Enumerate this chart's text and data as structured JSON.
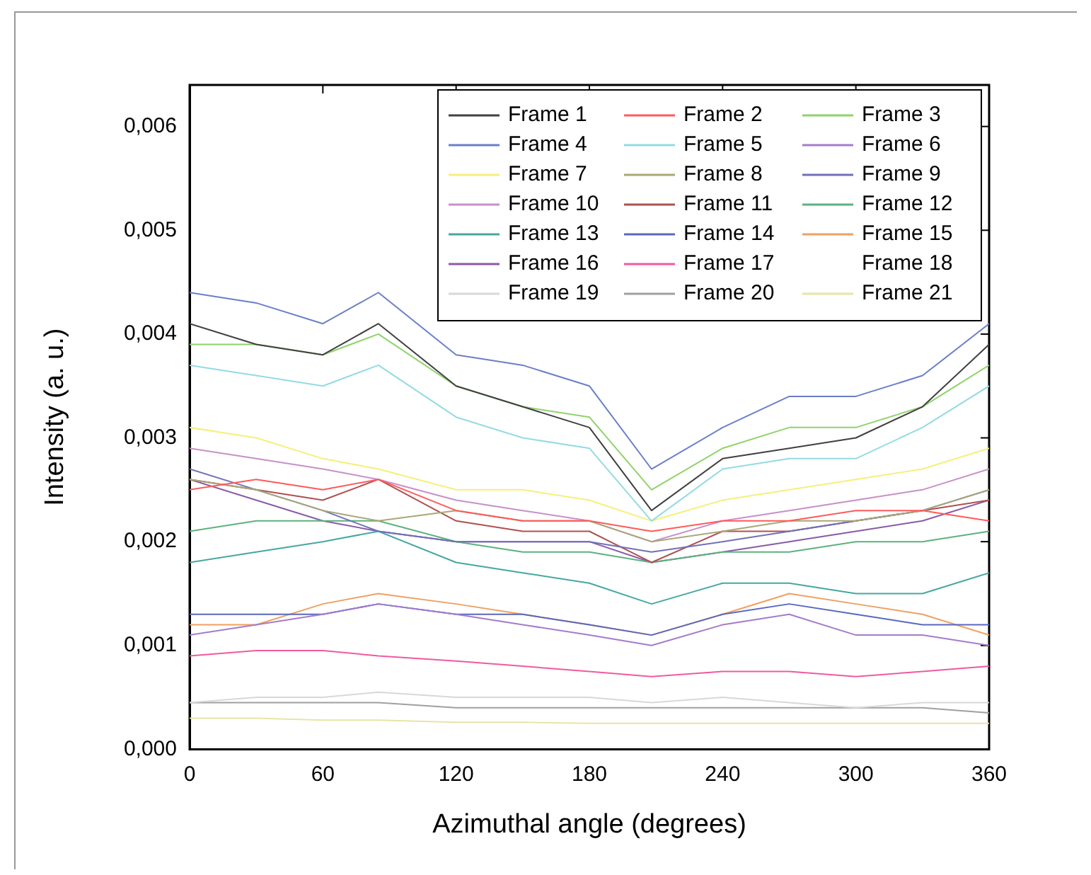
{
  "chart_data": {
    "type": "line",
    "xlabel": "Azimuthal angle (degrees)",
    "ylabel": "Intensity (a. u.)",
    "x": [
      0,
      30,
      60,
      85,
      120,
      150,
      180,
      208,
      240,
      270,
      300,
      330,
      360
    ],
    "xlim": [
      0,
      360
    ],
    "xticks": [
      0,
      60,
      120,
      180,
      240,
      300,
      360
    ],
    "ylim": [
      0,
      0.0064
    ],
    "yticks": [
      {
        "value": 0,
        "label": "0,000"
      },
      {
        "value": 0.001,
        "label": "0,001"
      },
      {
        "value": 0.002,
        "label": "0,002"
      },
      {
        "value": 0.003,
        "label": "0,003"
      },
      {
        "value": 0.004,
        "label": "0,004"
      },
      {
        "value": 0.005,
        "label": "0,005"
      },
      {
        "value": 0.006,
        "label": "0,006"
      }
    ],
    "grid": false,
    "legend": "top right",
    "marker": "none",
    "line_style": "solid",
    "series": [
      {
        "name": "Frame 1",
        "color": "#404040",
        "values": [
          0.0041,
          0.0039,
          0.0038,
          0.0041,
          0.0035,
          0.0033,
          0.0031,
          0.0023,
          0.0028,
          0.0029,
          0.003,
          0.0033,
          0.0039
        ]
      },
      {
        "name": "Frame 2",
        "color": "#ff5a5a",
        "values": [
          0.0025,
          0.0026,
          0.0025,
          0.0026,
          0.0023,
          0.0022,
          0.0022,
          0.0021,
          0.0022,
          0.0022,
          0.0023,
          0.0023,
          0.0022
        ]
      },
      {
        "name": "Frame 3",
        "color": "#8fd36a",
        "values": [
          0.0039,
          0.0039,
          0.0038,
          0.004,
          0.0035,
          0.0033,
          0.0032,
          0.0025,
          0.0029,
          0.0031,
          0.0031,
          0.0033,
          0.0037
        ]
      },
      {
        "name": "Frame 4",
        "color": "#6a7fc8",
        "values": [
          0.0044,
          0.0043,
          0.0041,
          0.0044,
          0.0038,
          0.0037,
          0.0035,
          0.0027,
          0.0031,
          0.0034,
          0.0034,
          0.0036,
          0.0041
        ]
      },
      {
        "name": "Frame 5",
        "color": "#94dbe3",
        "values": [
          0.0037,
          0.0036,
          0.0035,
          0.0037,
          0.0032,
          0.003,
          0.0029,
          0.0022,
          0.0027,
          0.0028,
          0.0028,
          0.0031,
          0.0035
        ]
      },
      {
        "name": "Frame 6",
        "color": "#a47ccc",
        "values": [
          0.0011,
          0.0012,
          0.0013,
          0.0014,
          0.0013,
          0.0012,
          0.0011,
          0.001,
          0.0012,
          0.0013,
          0.0011,
          0.0011,
          0.001
        ]
      },
      {
        "name": "Frame 7",
        "color": "#f5f07a",
        "values": [
          0.0031,
          0.003,
          0.0028,
          0.0027,
          0.0025,
          0.0025,
          0.0024,
          0.0022,
          0.0024,
          0.0025,
          0.0026,
          0.0027,
          0.0029
        ]
      },
      {
        "name": "Frame 8",
        "color": "#a8a878",
        "values": [
          0.0026,
          0.0025,
          0.0023,
          0.0022,
          0.0023,
          0.0022,
          0.0022,
          0.002,
          0.0021,
          0.0022,
          0.0022,
          0.0023,
          0.0025
        ]
      },
      {
        "name": "Frame 9",
        "color": "#7070b8",
        "values": [
          0.0027,
          0.0025,
          0.0023,
          0.0021,
          0.002,
          0.002,
          0.002,
          0.0019,
          0.002,
          0.0021,
          0.0022,
          0.0023,
          0.0025
        ]
      },
      {
        "name": "Frame 10",
        "color": "#c890c8",
        "values": [
          0.0029,
          0.0028,
          0.0027,
          0.0026,
          0.0024,
          0.0023,
          0.0022,
          0.002,
          0.0022,
          0.0023,
          0.0024,
          0.0025,
          0.0027
        ]
      },
      {
        "name": "Frame 11",
        "color": "#b05050",
        "values": [
          0.0026,
          0.0025,
          0.0024,
          0.0026,
          0.0022,
          0.0021,
          0.0021,
          0.0018,
          0.0021,
          0.0021,
          0.0022,
          0.0023,
          0.0024
        ]
      },
      {
        "name": "Frame 12",
        "color": "#5cb27e",
        "values": [
          0.0021,
          0.0022,
          0.0022,
          0.0022,
          0.002,
          0.0019,
          0.0019,
          0.0018,
          0.0019,
          0.0019,
          0.002,
          0.002,
          0.0021
        ]
      },
      {
        "name": "Frame 13",
        "color": "#45a8a0",
        "values": [
          0.0018,
          0.0019,
          0.002,
          0.0021,
          0.0018,
          0.0017,
          0.0016,
          0.0014,
          0.0016,
          0.0016,
          0.0015,
          0.0015,
          0.0017
        ]
      },
      {
        "name": "Frame 14",
        "color": "#5a68c0",
        "values": [
          0.0013,
          0.0013,
          0.0013,
          0.0014,
          0.0013,
          0.0013,
          0.0012,
          0.0011,
          0.0013,
          0.0014,
          0.0013,
          0.0012,
          0.0012
        ]
      },
      {
        "name": "Frame 15",
        "color": "#f0a060",
        "values": [
          0.0012,
          0.0012,
          0.0014,
          0.0015,
          0.0014,
          0.0013,
          0.0012,
          0.0011,
          0.0013,
          0.0015,
          0.0014,
          0.0013,
          0.0011
        ]
      },
      {
        "name": "Frame 16",
        "color": "#8a5aa8",
        "values": [
          0.0026,
          0.0024,
          0.0022,
          0.0021,
          0.002,
          0.002,
          0.002,
          0.0018,
          0.0019,
          0.002,
          0.0021,
          0.0022,
          0.0024
        ]
      },
      {
        "name": "Frame 17",
        "color": "#f05aa0",
        "values": [
          0.0009,
          0.00095,
          0.00095,
          0.0009,
          0.00085,
          0.0008,
          0.00075,
          0.0007,
          0.00075,
          0.00075,
          0.0007,
          0.00075,
          0.0008
        ]
      },
      {
        "name": "Frame 18",
        "values": [
          null,
          null,
          null,
          null,
          null,
          null,
          null,
          null,
          null,
          null,
          null,
          null,
          null
        ]
      },
      {
        "name": "Frame 19",
        "color": "#d8d8d8",
        "values": [
          0.00045,
          0.0005,
          0.0005,
          0.00055,
          0.0005,
          0.0005,
          0.0005,
          0.00045,
          0.0005,
          0.00045,
          0.0004,
          0.00045,
          0.00045
        ]
      },
      {
        "name": "Frame 20",
        "color": "#a0a0a0",
        "values": [
          0.00045,
          0.00045,
          0.00045,
          0.00045,
          0.0004,
          0.0004,
          0.0004,
          0.0004,
          0.0004,
          0.0004,
          0.0004,
          0.0004,
          0.00035
        ]
      },
      {
        "name": "Frame 21",
        "color": "#e8e4a8",
        "values": [
          0.0003,
          0.0003,
          0.00028,
          0.00028,
          0.00026,
          0.00026,
          0.00025,
          0.00025,
          0.00025,
          0.00025,
          0.00025,
          0.00025,
          0.00025
        ]
      }
    ]
  }
}
